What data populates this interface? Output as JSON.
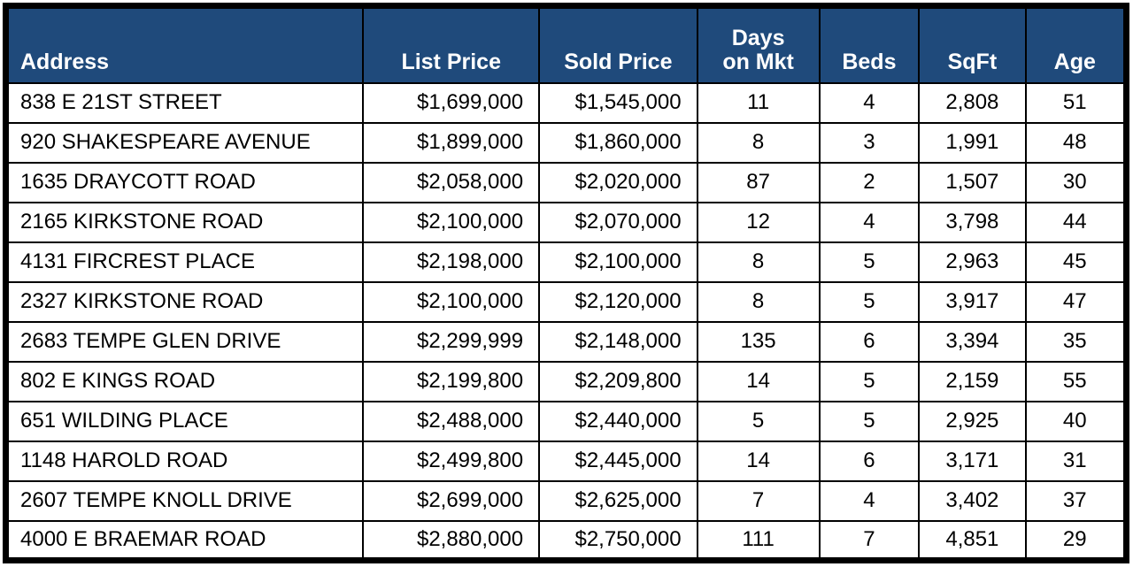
{
  "colors": {
    "header_bg": "#1F4A7B",
    "header_text": "#FFFFFF",
    "body_bg": "#FFFFFF",
    "body_text": "#000000",
    "border": "#000000"
  },
  "table": {
    "columns": [
      {
        "key": "address",
        "label": "Address"
      },
      {
        "key": "list-price",
        "label": "List Price"
      },
      {
        "key": "sold-price",
        "label": "Sold Price"
      },
      {
        "key": "days-on-mkt",
        "label": "Days\non Mkt"
      },
      {
        "key": "beds",
        "label": "Beds"
      },
      {
        "key": "sqft",
        "label": "SqFt"
      },
      {
        "key": "age",
        "label": "Age"
      }
    ],
    "rows": [
      [
        "838 E 21ST STREET",
        "$1,699,000",
        "$1,545,000",
        "11",
        "4",
        "2,808",
        "51"
      ],
      [
        "920 SHAKESPEARE AVENUE",
        "$1,899,000",
        "$1,860,000",
        "8",
        "3",
        "1,991",
        "48"
      ],
      [
        "1635 DRAYCOTT ROAD",
        "$2,058,000",
        "$2,020,000",
        "87",
        "2",
        "1,507",
        "30"
      ],
      [
        "2165 KIRKSTONE ROAD",
        "$2,100,000",
        "$2,070,000",
        "12",
        "4",
        "3,798",
        "44"
      ],
      [
        "4131 FIRCREST PLACE",
        "$2,198,000",
        "$2,100,000",
        "8",
        "5",
        "2,963",
        "45"
      ],
      [
        "2327 KIRKSTONE ROAD",
        "$2,100,000",
        "$2,120,000",
        "8",
        "5",
        "3,917",
        "47"
      ],
      [
        "2683 TEMPE GLEN DRIVE",
        "$2,299,999",
        "$2,148,000",
        "135",
        "6",
        "3,394",
        "35"
      ],
      [
        "802 E KINGS ROAD",
        "$2,199,800",
        "$2,209,800",
        "14",
        "5",
        "2,159",
        "55"
      ],
      [
        "651 WILDING PLACE",
        "$2,488,000",
        "$2,440,000",
        "5",
        "5",
        "2,925",
        "40"
      ],
      [
        "1148 HAROLD ROAD",
        "$2,499,800",
        "$2,445,000",
        "14",
        "6",
        "3,171",
        "31"
      ],
      [
        "2607 TEMPE KNOLL DRIVE",
        "$2,699,000",
        "$2,625,000",
        "7",
        "4",
        "3,402",
        "37"
      ],
      [
        "4000 E BRAEMAR ROAD",
        "$2,880,000",
        "$2,750,000",
        "111",
        "7",
        "4,851",
        "29"
      ]
    ]
  }
}
